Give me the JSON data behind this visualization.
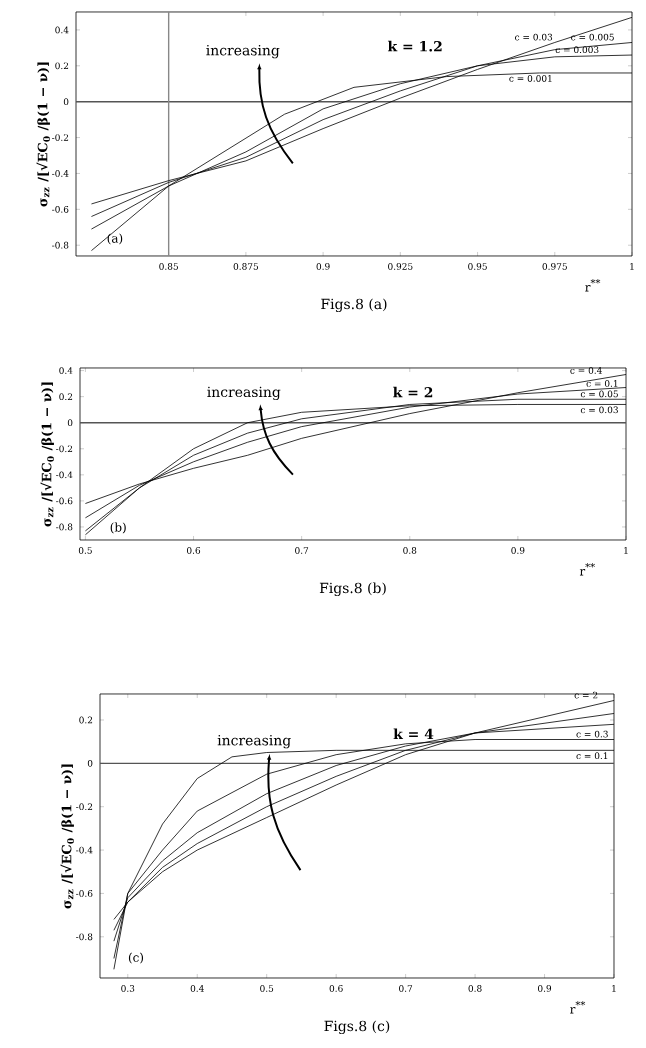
{
  "chart_data": [
    {
      "type": "line",
      "xlabel": "r$^{**}$",
      "ylabel": "σ$_{zz}$ /[√EC$_{0}$ /β(1 − ν)]",
      "xlim": [
        0.82,
        1.0
      ],
      "ylim": [
        -0.86,
        0.5
      ],
      "xticks": [
        0.85,
        0.875,
        0.9,
        0.925,
        0.95,
        0.975,
        1
      ],
      "yticks": [
        -0.8,
        -0.6,
        -0.4,
        -0.2,
        0,
        0.2,
        0.4
      ],
      "series": [
        {
          "color": "#000000",
          "x": [
            0.825,
            0.85,
            0.8875,
            0.91,
            0.94,
            0.97,
            1.0
          ],
          "values": [
            -0.83,
            -0.47,
            -0.07,
            0.08,
            0.14,
            0.16,
            0.16
          ]
        },
        {
          "color": "#000000",
          "x": [
            0.825,
            0.85,
            0.875,
            0.9,
            0.925,
            0.95,
            0.975,
            1.0
          ],
          "values": [
            -0.71,
            -0.47,
            -0.28,
            -0.04,
            0.1,
            0.2,
            0.25,
            0.26
          ]
        },
        {
          "color": "#000000",
          "x": [
            0.825,
            0.85,
            0.875,
            0.9,
            0.925,
            0.95,
            0.975,
            1.0
          ],
          "values": [
            -0.64,
            -0.45,
            -0.31,
            -0.1,
            0.06,
            0.2,
            0.29,
            0.33
          ]
        },
        {
          "color": "#000000",
          "x": [
            0.825,
            0.85,
            0.875,
            0.9,
            0.925,
            0.95,
            0.975,
            1.0
          ],
          "values": [
            -0.57,
            -0.44,
            -0.33,
            -0.15,
            0.02,
            0.18,
            0.33,
            0.47
          ]
        }
      ],
      "ref_lines": [
        {
          "axis": "y",
          "value": 0,
          "color": "#555555"
        },
        {
          "axis": "x",
          "value": 0.85,
          "color": "#888888"
        }
      ],
      "annotations": [
        "increasing",
        "k = 1.2",
        "(a)",
        "Figs.8 (a)",
        {
          "text": "c = 0.03",
          "x": 0.975,
          "y": 0.33
        },
        {
          "text": "c = 0.005",
          "x": 0.995,
          "y": 0.33
        },
        {
          "text": "c = 0.003",
          "x": 0.99,
          "y": 0.26
        },
        {
          "text": "c = 0.001",
          "x": 0.975,
          "y": 0.16
        }
      ]
    },
    {
      "type": "line",
      "xlabel": "r$^{**}$",
      "ylabel": "σ$_{zz}$ /[√EC$_{0}$ /β(1 − ν)]",
      "xlim": [
        0.495,
        1.0
      ],
      "ylim": [
        -0.9,
        0.42
      ],
      "xticks": [
        0.5,
        0.6,
        0.7,
        0.8,
        0.9,
        1
      ],
      "yticks": [
        -0.8,
        -0.6,
        -0.4,
        -0.2,
        0,
        0.2,
        0.4
      ],
      "series": [
        {
          "color": "#000000",
          "x": [
            0.5,
            0.55,
            0.6,
            0.65,
            0.7,
            0.8,
            0.9,
            1.0
          ],
          "values": [
            -0.86,
            -0.5,
            -0.2,
            0.0,
            0.08,
            0.13,
            0.14,
            0.14
          ]
        },
        {
          "color": "#000000",
          "x": [
            0.5,
            0.55,
            0.6,
            0.65,
            0.7,
            0.8,
            0.9,
            1.0
          ],
          "values": [
            -0.83,
            -0.5,
            -0.25,
            -0.08,
            0.03,
            0.14,
            0.18,
            0.18
          ]
        },
        {
          "color": "#000000",
          "x": [
            0.5,
            0.55,
            0.6,
            0.65,
            0.7,
            0.8,
            0.9,
            1.0
          ],
          "values": [
            -0.73,
            -0.48,
            -0.3,
            -0.15,
            -0.03,
            0.12,
            0.22,
            0.27
          ]
        },
        {
          "color": "#000000",
          "x": [
            0.5,
            0.55,
            0.6,
            0.65,
            0.7,
            0.8,
            0.9,
            1.0
          ],
          "values": [
            -0.62,
            -0.47,
            -0.35,
            -0.25,
            -0.12,
            0.07,
            0.23,
            0.37
          ]
        }
      ],
      "ref_lines": [
        {
          "axis": "y",
          "value": 0,
          "color": "#555555"
        }
      ],
      "annotations": [
        "increasing",
        "k = 2",
        "(b)",
        "Figs.8 (b)",
        {
          "text": "c = 0.4",
          "x": 0.98,
          "y": 0.36
        },
        {
          "text": "c = 0.1",
          "x": 0.995,
          "y": 0.26
        },
        {
          "text": "c = 0.05",
          "x": 0.995,
          "y": 0.18
        },
        {
          "text": "c = 0.03",
          "x": 0.995,
          "y": 0.14
        }
      ]
    },
    {
      "type": "line",
      "xlabel": "r$^{**}$",
      "ylabel": "σ$_{zz}$ /[√EC$_{0}$ /β(1 − ν)]",
      "xlim": [
        0.26,
        1.0
      ],
      "ylim": [
        -0.99,
        0.32
      ],
      "xticks": [
        0.3,
        0.4,
        0.5,
        0.6,
        0.7,
        0.8,
        0.9,
        1
      ],
      "yticks": [
        -0.8,
        -0.6,
        -0.4,
        -0.2,
        0,
        0.2
      ],
      "series": [
        {
          "color": "#000000",
          "x": [
            0.28,
            0.3,
            0.35,
            0.4,
            0.45,
            0.5,
            0.6,
            0.8,
            1.0
          ],
          "values": [
            -0.95,
            -0.6,
            -0.28,
            -0.07,
            0.03,
            0.05,
            0.06,
            0.06,
            0.06
          ]
        },
        {
          "color": "#000000",
          "x": [
            0.28,
            0.3,
            0.35,
            0.4,
            0.5,
            0.6,
            0.7,
            0.8,
            1.0
          ],
          "values": [
            -0.9,
            -0.6,
            -0.4,
            -0.22,
            -0.05,
            0.04,
            0.09,
            0.11,
            0.11
          ]
        },
        {
          "color": "#000000",
          "x": [
            0.28,
            0.3,
            0.35,
            0.4,
            0.5,
            0.6,
            0.7,
            0.8,
            1.0
          ],
          "values": [
            -0.82,
            -0.62,
            -0.45,
            -0.32,
            -0.14,
            -0.01,
            0.08,
            0.14,
            0.18
          ]
        },
        {
          "color": "#000000",
          "x": [
            0.28,
            0.3,
            0.35,
            0.4,
            0.5,
            0.6,
            0.7,
            0.8,
            1.0
          ],
          "values": [
            -0.77,
            -0.64,
            -0.48,
            -0.37,
            -0.2,
            -0.06,
            0.06,
            0.14,
            0.23
          ]
        },
        {
          "color": "#000000",
          "x": [
            0.28,
            0.3,
            0.35,
            0.4,
            0.5,
            0.6,
            0.7,
            0.8,
            1.0
          ],
          "values": [
            -0.72,
            -0.64,
            -0.5,
            -0.4,
            -0.25,
            -0.1,
            0.04,
            0.14,
            0.29
          ]
        }
      ],
      "ref_lines": [
        {
          "axis": "y",
          "value": 0,
          "color": "#555555"
        }
      ],
      "annotations": [
        "increasing",
        "k = 4",
        "(c)",
        "Figs.8 (c)",
        {
          "text": "c = 2",
          "x": 0.98,
          "y": 0.29
        },
        {
          "text": "c = 0.3",
          "x": 0.995,
          "y": 0.11
        },
        {
          "text": "c = 0.1",
          "x": 0.995,
          "y": 0.06
        }
      ]
    }
  ]
}
